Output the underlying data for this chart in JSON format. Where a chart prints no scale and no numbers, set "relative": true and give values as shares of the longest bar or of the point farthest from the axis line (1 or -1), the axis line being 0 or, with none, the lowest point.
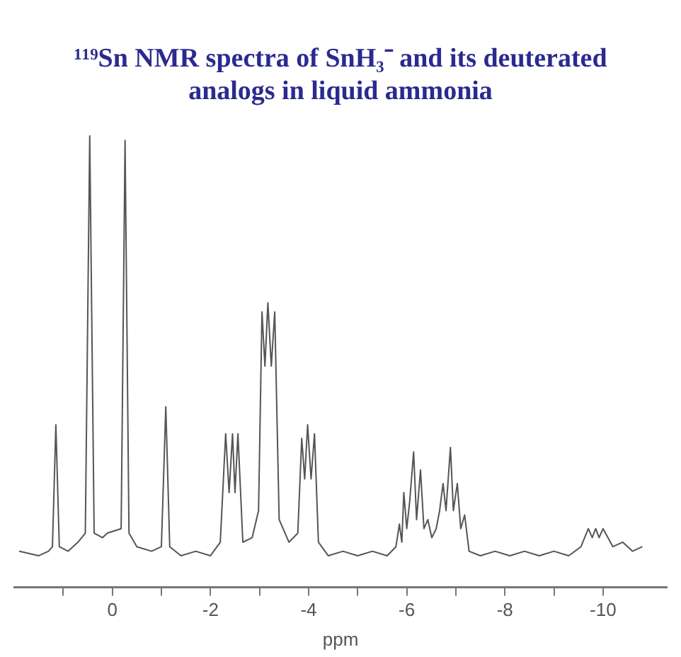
{
  "chart_data": {
    "type": "line",
    "title": "¹¹⁹Sn NMR spectra of SnH₃⁻ and its deuterated analogs in liquid ammonia",
    "xlabel": "ppm",
    "relative": true,
    "grid": false,
    "legend": false,
    "marker": "none",
    "line_style": "solid",
    "xlim": [
      2,
      -11.3
    ],
    "xticks": [
      {
        "value": 1,
        "label": null
      },
      0,
      {
        "value": -1,
        "label": null
      },
      -2,
      {
        "value": -3,
        "label": null
      },
      -4,
      {
        "value": -5,
        "label": null
      },
      -6,
      {
        "value": -7,
        "label": null
      },
      -8,
      {
        "value": -9,
        "label": null
      },
      -10
    ],
    "series": [
      {
        "color": "#555555",
        "x": [
          1.9,
          1.5,
          1.3,
          1.22,
          1.15,
          1.08,
          0.9,
          0.7,
          0.55,
          0.46,
          0.37,
          0.2,
          0.1,
          -0.18,
          -0.26,
          -0.34,
          -0.5,
          -0.8,
          -1.0,
          -1.09,
          -1.17,
          -1.4,
          -1.7,
          -2.0,
          -2.2,
          -2.31,
          -2.38,
          -2.45,
          -2.5,
          -2.56,
          -2.66,
          -2.85,
          -2.98,
          -3.05,
          -3.11,
          -3.17,
          -3.24,
          -3.31,
          -3.4,
          -3.6,
          -3.78,
          -3.86,
          -3.92,
          -3.98,
          -4.05,
          -4.12,
          -4.2,
          -4.4,
          -4.7,
          -5.0,
          -5.3,
          -5.6,
          -5.78,
          -5.85,
          -5.9,
          -5.94,
          -6.0,
          -6.06,
          -6.14,
          -6.2,
          -6.28,
          -6.35,
          -6.43,
          -6.51,
          -6.6,
          -6.67,
          -6.74,
          -6.8,
          -6.89,
          -6.95,
          -7.03,
          -7.1,
          -7.18,
          -7.27,
          -7.5,
          -7.8,
          -8.1,
          -8.4,
          -8.7,
          -9.0,
          -9.3,
          -9.55,
          -9.7,
          -9.78,
          -9.85,
          -9.92,
          -10.0,
          -10.2,
          -10.4,
          -10.6,
          -10.8
        ],
        "values": [
          0.08,
          0.07,
          0.08,
          0.09,
          0.36,
          0.09,
          0.08,
          0.1,
          0.12,
          1.0,
          0.12,
          0.11,
          0.12,
          0.13,
          0.99,
          0.12,
          0.09,
          0.08,
          0.09,
          0.4,
          0.09,
          0.07,
          0.08,
          0.07,
          0.1,
          0.34,
          0.21,
          0.34,
          0.21,
          0.34,
          0.1,
          0.11,
          0.17,
          0.61,
          0.49,
          0.63,
          0.49,
          0.61,
          0.15,
          0.1,
          0.12,
          0.33,
          0.24,
          0.36,
          0.24,
          0.34,
          0.1,
          0.07,
          0.08,
          0.07,
          0.08,
          0.07,
          0.09,
          0.14,
          0.1,
          0.21,
          0.13,
          0.19,
          0.3,
          0.15,
          0.26,
          0.13,
          0.15,
          0.11,
          0.13,
          0.17,
          0.23,
          0.17,
          0.31,
          0.17,
          0.23,
          0.13,
          0.16,
          0.08,
          0.07,
          0.08,
          0.07,
          0.08,
          0.07,
          0.08,
          0.07,
          0.09,
          0.13,
          0.11,
          0.13,
          0.11,
          0.13,
          0.09,
          0.1,
          0.08,
          0.09
        ]
      }
    ]
  }
}
